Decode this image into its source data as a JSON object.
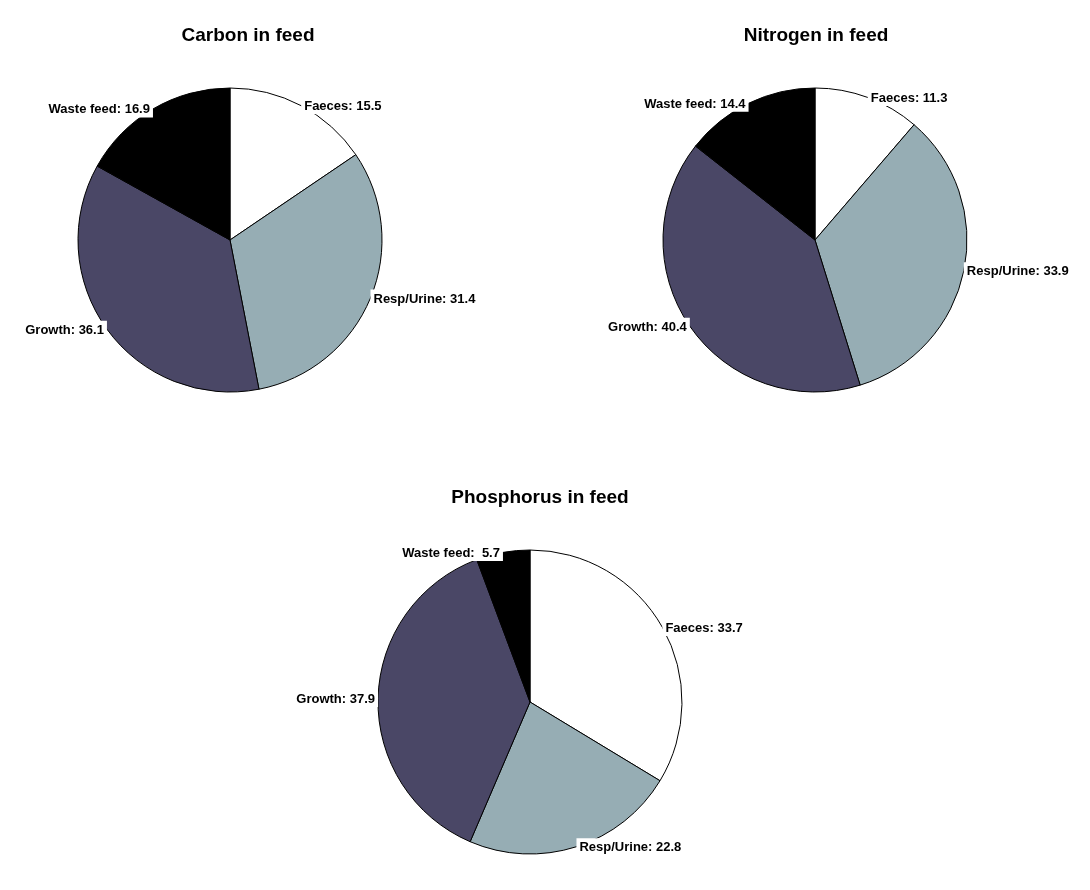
{
  "chart_data": [
    {
      "type": "pie",
      "title": "Carbon in feed",
      "categories": [
        "Faeces",
        "Resp/Urine",
        "Growth",
        "Waste feed"
      ],
      "values": [
        15.5,
        31.4,
        36.1,
        16.9
      ],
      "colors": [
        "#ffffff",
        "#96adb4",
        "#4a4766",
        "#000000"
      ],
      "value_labels": [
        ": 15.5",
        ": 31.4",
        ": 36.1",
        ": 16.9"
      ]
    },
    {
      "type": "pie",
      "title": "Nitrogen in feed",
      "categories": [
        "Faeces",
        "Resp/Urine",
        "Growth",
        "Waste feed"
      ],
      "values": [
        11.3,
        33.9,
        40.4,
        14.4
      ],
      "colors": [
        "#ffffff",
        "#96adb4",
        "#4a4766",
        "#000000"
      ],
      "value_labels": [
        ": 11.3",
        ": 33.9",
        ": 40.4",
        ": 14.4"
      ]
    },
    {
      "type": "pie",
      "title": "Phosphorus in feed",
      "categories": [
        "Faeces",
        "Resp/Urine",
        "Growth",
        "Waste feed"
      ],
      "values": [
        33.7,
        22.8,
        37.9,
        5.7
      ],
      "colors": [
        "#ffffff",
        "#96adb4",
        "#4a4766",
        "#000000"
      ],
      "value_labels": [
        ": 33.7",
        ": 22.8",
        ": 37.9",
        ":  5.7"
      ]
    }
  ]
}
